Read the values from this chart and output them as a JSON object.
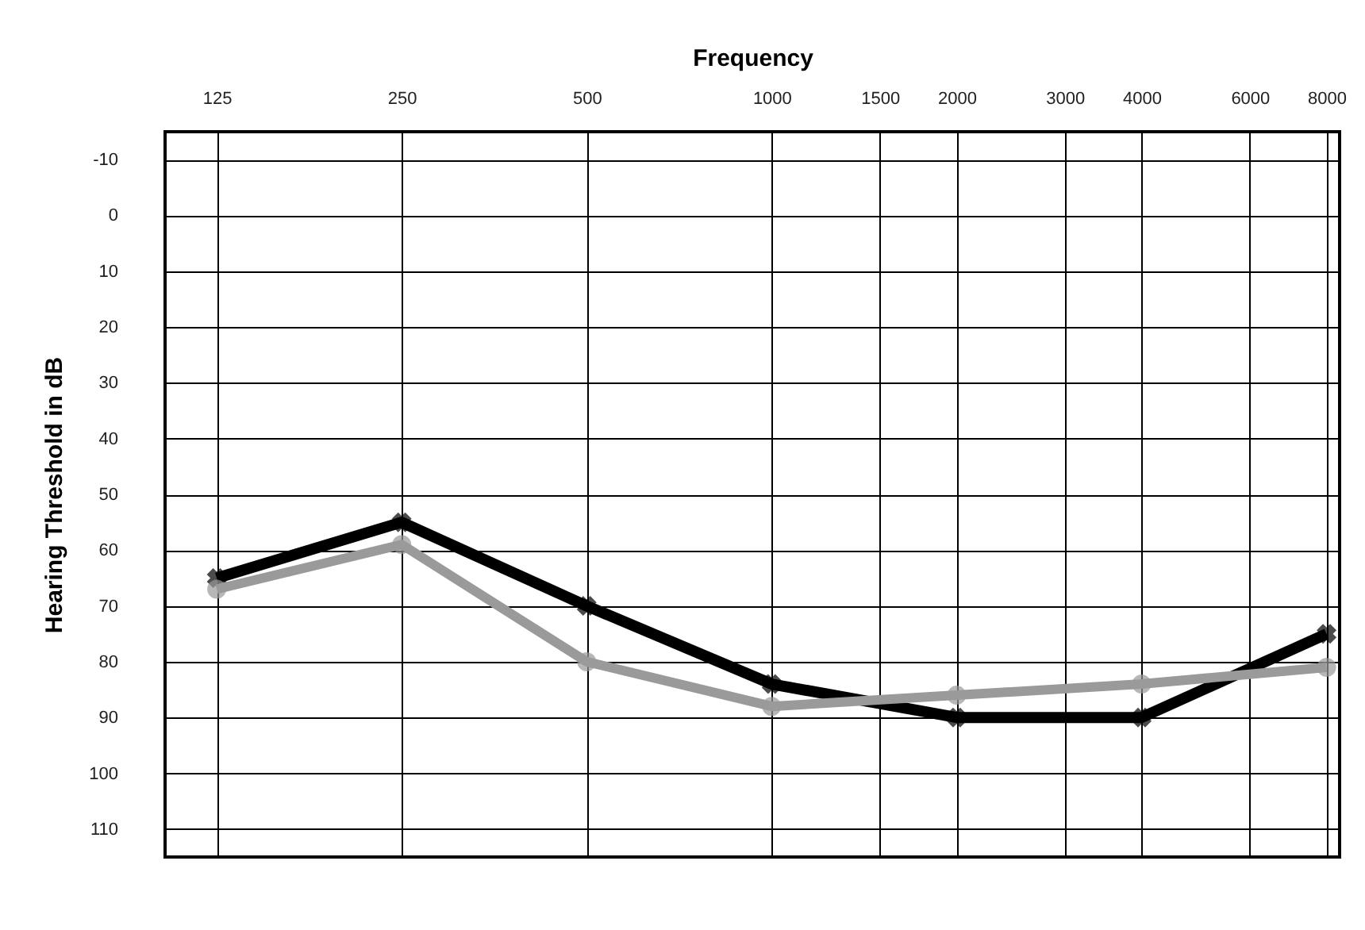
{
  "chart_data": {
    "type": "line",
    "title": "Frequency",
    "ylabel": "Hearing Threshold in dB",
    "x": [
      125,
      250,
      500,
      1000,
      2000,
      4000,
      8000
    ],
    "series": [
      {
        "color": "#000000",
        "marker": "cross",
        "values": [
          65,
          55,
          70,
          84,
          90,
          90,
          75
        ]
      },
      {
        "color": "#9a9a9a",
        "marker": "circle",
        "values": [
          67,
          59,
          80,
          88,
          86,
          84,
          81
        ]
      }
    ],
    "log": "x",
    "xlim": [
      103,
      8400
    ],
    "xticks": [
      125,
      250,
      500,
      1000,
      1500,
      2000,
      3000,
      4000,
      6000,
      8000
    ],
    "ylim": [
      115,
      -15
    ],
    "yticks": [
      -10,
      0,
      10,
      20,
      30,
      40,
      50,
      60,
      70,
      80,
      90,
      100,
      110
    ],
    "grid": true
  }
}
